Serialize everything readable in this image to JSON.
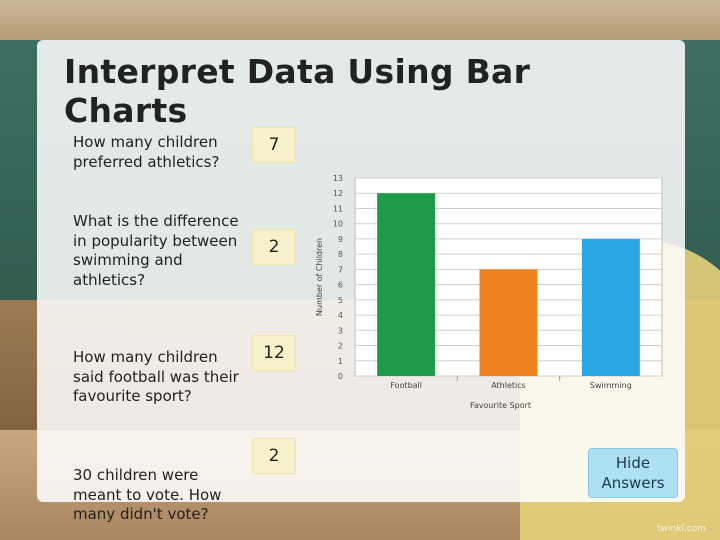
{
  "title": "Interpret Data Using Bar Charts",
  "questions": [
    {
      "text": "How many children preferred athletics?",
      "answer": "7"
    },
    {
      "text": "What is the difference in popularity between swimming and athletics?",
      "answer": "2"
    },
    {
      "text": "How many children said football was their favourite sport?",
      "answer": "12"
    },
    {
      "text": "30 children were meant to vote. How many didn't vote?",
      "answer": "2"
    }
  ],
  "hide_button": "Hide\nAnswers",
  "brand": "twinkl.com",
  "chart_data": {
    "type": "bar",
    "categories": [
      "Football",
      "Athletics",
      "Swimming"
    ],
    "values": [
      12,
      7,
      9
    ],
    "colors": [
      "#1f9a48",
      "#ef8320",
      "#29a8e3"
    ],
    "xlabel": "Favourite Sport",
    "ylabel": "Number of Children",
    "ylim": [
      0,
      13
    ],
    "yticks": [
      0,
      1,
      2,
      3,
      4,
      5,
      6,
      7,
      8,
      9,
      10,
      11,
      12,
      13
    ],
    "grid": true
  }
}
